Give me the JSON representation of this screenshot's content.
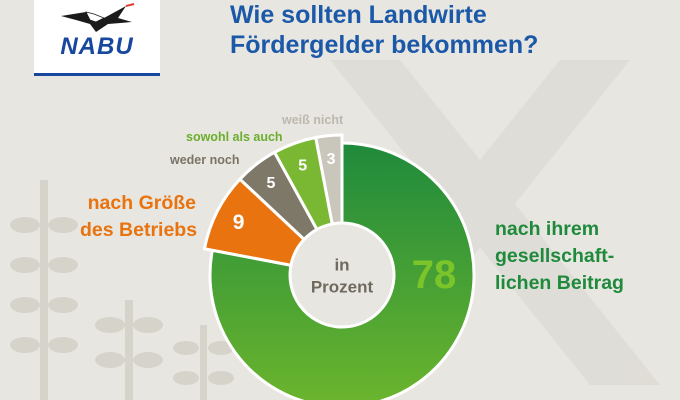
{
  "logo": {
    "text": "NABU"
  },
  "title": {
    "line1": "Wie sollten Landwirte",
    "line2": "Fördergelder bekommen?"
  },
  "colors": {
    "title": "#1b59a8",
    "logo_blue": "#17479e",
    "background": "#e8e6e1",
    "beitrag_dark": "#1f8a3c",
    "beitrag_light": "#6cb52d",
    "groesse": "#e8730f",
    "weder": "#7e7868",
    "sowohl": "#7ab833",
    "weiss": "#c9c6bc"
  },
  "chart_data": {
    "type": "pie",
    "variant": "donut",
    "center_label": [
      "in",
      "Prozent"
    ],
    "slices": [
      {
        "name": "nach ihrem gesellschaftlichen Beitrag",
        "label_lines": [
          "nach ihrem",
          "gesellschaft-",
          "lichen Beitrag"
        ],
        "value": 78,
        "color": "#4aa433"
      },
      {
        "name": "nach Größe des Betriebs",
        "label_lines": [
          "nach Größe",
          "des Betriebs"
        ],
        "value": 9,
        "color": "#e8730f"
      },
      {
        "name": "weder noch",
        "label_lines": [
          "weder noch"
        ],
        "value": 5,
        "color": "#7e7868"
      },
      {
        "name": "sowohl als auch",
        "label_lines": [
          "sowohl als auch"
        ],
        "value": 5,
        "color": "#7ab833"
      },
      {
        "name": "weiß nicht",
        "label_lines": [
          "weiß nicht"
        ],
        "value": 3,
        "color": "#c9c6bc"
      }
    ]
  }
}
